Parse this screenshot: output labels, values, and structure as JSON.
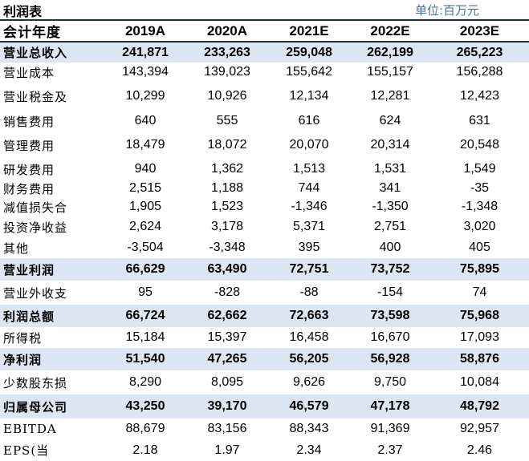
{
  "title": "利润表",
  "unit": "单位:百万元",
  "header": [
    "会计年度",
    "2019A",
    "2020A",
    "2021E",
    "2022E",
    "2023E"
  ],
  "rows": [
    [
      "营业总收入",
      "241,871",
      "233,263",
      "259,048",
      "262,199",
      "265,223"
    ],
    [
      "营业成本",
      "143,394",
      "139,023",
      "155,642",
      "155,157",
      "156,288"
    ],
    [
      "营业税金及",
      "10,299",
      "10,926",
      "12,134",
      "12,281",
      "12,423"
    ],
    [
      "销售费用",
      "640",
      "555",
      "616",
      "624",
      "631"
    ],
    [
      "管理费用",
      "18,479",
      "18,072",
      "20,070",
      "20,314",
      "20,548"
    ],
    [
      "研发费用",
      "940",
      "1,362",
      "1,513",
      "1,531",
      "1,549"
    ],
    [
      "财务费用",
      "2,515",
      "1,188",
      "744",
      "341",
      "-35"
    ],
    [
      "减值损失合",
      "1,905",
      "1,523",
      "-1,346",
      "-1,350",
      "-1,348"
    ],
    [
      "投资净收益",
      "2,624",
      "3,178",
      "5,371",
      "2,751",
      "3,020"
    ],
    [
      "其他",
      "-3,504",
      "-3,348",
      "395",
      "400",
      "405"
    ],
    [
      "营业利润",
      "66,629",
      "63,490",
      "72,751",
      "73,752",
      "75,895"
    ],
    [
      "营业外收支",
      "95",
      "-828",
      "-88",
      "-154",
      "74"
    ],
    [
      "利润总额",
      "66,724",
      "62,662",
      "72,663",
      "73,598",
      "75,968"
    ],
    [
      "所得税",
      "15,184",
      "15,397",
      "16,458",
      "16,670",
      "17,093"
    ],
    [
      "净利润",
      "51,540",
      "47,265",
      "56,205",
      "56,928",
      "58,876"
    ],
    [
      "少数股东损",
      "8,290",
      "8,095",
      "9,626",
      "9,750",
      "10,084"
    ],
    [
      "归属母公司",
      "43,250",
      "39,170",
      "46,579",
      "47,178",
      "48,792"
    ],
    [
      "EBITDA",
      "88,679",
      "83,156",
      "88,343",
      "91,369",
      "92,957"
    ],
    [
      "EPS(当",
      "2.18",
      "1.97",
      "2.34",
      "2.37",
      "2.46"
    ]
  ]
}
